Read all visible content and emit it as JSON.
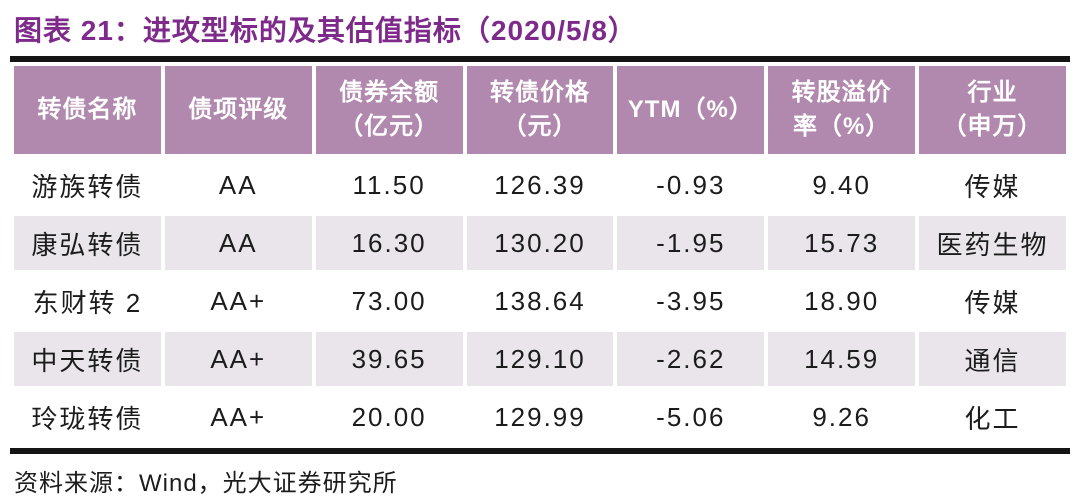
{
  "title": "图表 21：进攻型标的及其估值指标（2020/5/8）",
  "table": {
    "columns": [
      {
        "label": "转债名称"
      },
      {
        "label": "债项评级"
      },
      {
        "label": "债券余额\n（亿元）"
      },
      {
        "label": "转债价格\n（元）"
      },
      {
        "label": "YTM（%）"
      },
      {
        "label": "转股溢价\n率（%）"
      },
      {
        "label": "行业\n（申万）"
      }
    ],
    "rows": [
      [
        "游族转债",
        "AA",
        "11.50",
        "126.39",
        "-0.93",
        "9.40",
        "传媒"
      ],
      [
        "康弘转债",
        "AA",
        "16.30",
        "130.20",
        "-1.95",
        "15.73",
        "医药生物"
      ],
      [
        "东财转 2",
        "AA+",
        "73.00",
        "138.64",
        "-3.95",
        "18.90",
        "传媒"
      ],
      [
        "中天转债",
        "AA+",
        "39.65",
        "129.10",
        "-2.62",
        "14.59",
        "通信"
      ],
      [
        "玲珑转债",
        "AA+",
        "20.00",
        "129.99",
        "-5.06",
        "9.26",
        "化工"
      ]
    ]
  },
  "source": "资料来源：Wind，光大证券研究所",
  "colors": {
    "title_text": "#7e2a8a",
    "header_bg": "#b189ae",
    "header_text": "#ffffff",
    "row_alt_bg": "#e9e5eb",
    "body_text": "#1c1c1c",
    "border": "#151515"
  }
}
